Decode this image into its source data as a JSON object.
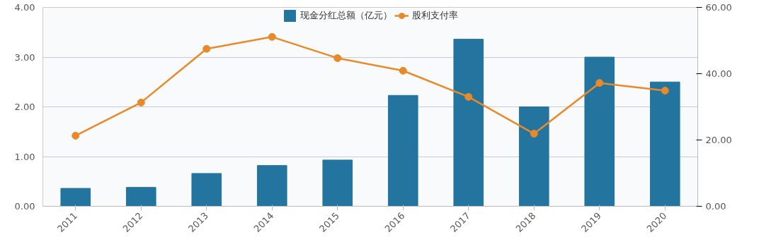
{
  "chart_data": {
    "type": "bar",
    "categories": [
      "2011",
      "2012",
      "2013",
      "2014",
      "2015",
      "2016",
      "2017",
      "2018",
      "2019",
      "2020"
    ],
    "series": [
      {
        "name": "现金分红总额（亿元）",
        "color": "#2474a0",
        "values": [
          0.36,
          0.38,
          0.66,
          0.82,
          0.93,
          2.23,
          3.36,
          2.0,
          3.0,
          2.5
        ]
      },
      {
        "name": "股利支付率",
        "type": "line",
        "axis": "y2",
        "color": "#e8892a",
        "marker": "circle",
        "values": [
          21.3,
          31.3,
          47.5,
          51.1,
          44.7,
          40.9,
          33.0,
          21.9,
          37.2,
          34.9
        ]
      }
    ],
    "ylim": [
      0,
      4
    ],
    "yticks": [
      {
        "value": 0,
        "label": "0.00"
      },
      {
        "value": 1,
        "label": "1.00"
      },
      {
        "value": 2,
        "label": "2.00"
      },
      {
        "value": 3,
        "label": "3.00"
      },
      {
        "value": 4,
        "label": "4.00"
      }
    ],
    "y2lim": [
      0,
      60
    ],
    "y2ticks": [
      {
        "value": 0,
        "label": "0.00"
      },
      {
        "value": 20,
        "label": "20.00"
      },
      {
        "value": 40,
        "label": "40.00"
      },
      {
        "value": 60,
        "label": "60.00"
      }
    ],
    "grid": "y",
    "legend": "top"
  }
}
